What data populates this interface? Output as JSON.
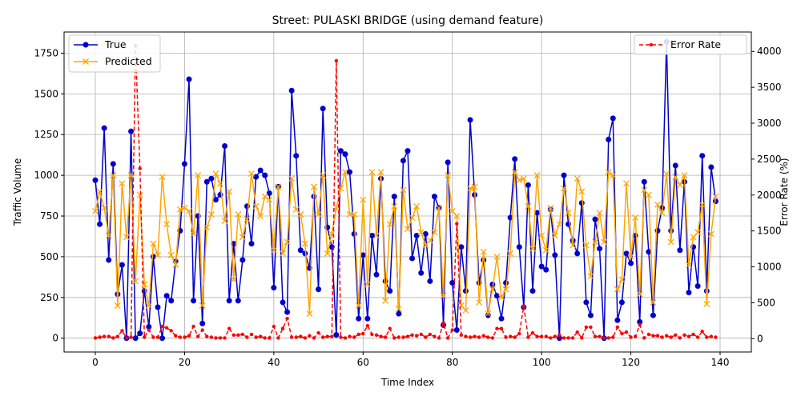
{
  "chart_data": {
    "type": "line",
    "title": "Street: PULASKI BRIDGE (using demand feature)",
    "xlabel": "Time Index",
    "ylabel": "Traffic Volume",
    "y2label": "Error Rate (%)",
    "xlim": [
      -7,
      147
    ],
    "ylim": [
      -85,
      1880
    ],
    "y2lim": [
      -186,
      4270
    ],
    "xticks": [
      0,
      20,
      40,
      60,
      80,
      100,
      120,
      140
    ],
    "yticks": [
      0,
      250,
      500,
      750,
      1000,
      1250,
      1500,
      1750
    ],
    "y2ticks": [
      0,
      500,
      1000,
      1500,
      2000,
      2500,
      3000,
      3500,
      4000
    ],
    "grid": true,
    "legend_left_placement": "upper-left",
    "legend_right_placement": "upper-right",
    "series": [
      {
        "name": "True",
        "axis": "left",
        "color": "#0000cc",
        "marker": "circle",
        "values": [
          970,
          700,
          1290,
          480,
          1070,
          270,
          450,
          0,
          1270,
          0,
          30,
          290,
          70,
          500,
          190,
          0,
          260,
          230,
          470,
          660,
          1070,
          1590,
          230,
          750,
          90,
          960,
          980,
          850,
          880,
          1180,
          230,
          580,
          230,
          480,
          810,
          580,
          990,
          1030,
          1000,
          890,
          310,
          930,
          220,
          160,
          1520,
          1120,
          540,
          520,
          430,
          870,
          300,
          1410,
          680,
          560,
          20,
          1150,
          1130,
          1020,
          640,
          120,
          510,
          120,
          630,
          390,
          980,
          350,
          290,
          870,
          150,
          1090,
          1150,
          490,
          630,
          400,
          640,
          350,
          870,
          800,
          80,
          1080,
          340,
          50,
          560,
          290,
          1340,
          880,
          340,
          480,
          140,
          330,
          260,
          120,
          340,
          740,
          1100,
          560,
          190,
          940,
          290,
          770,
          440,
          420,
          790,
          510,
          0,
          1000,
          700,
          600,
          520,
          830,
          220,
          140,
          730,
          550,
          0,
          1220,
          1350,
          110,
          220,
          520,
          460,
          630,
          100,
          960,
          530,
          140,
          660,
          800,
          1820,
          660,
          1060,
          540,
          960,
          280,
          560,
          320,
          1120,
          290,
          1050,
          840
        ]
      },
      {
        "name": "Predicted",
        "axis": "left",
        "color": "#ffa500",
        "marker": "x",
        "values": [
          780,
          900,
          800,
          630,
          1000,
          200,
          950,
          620,
          1000,
          350,
          880,
          330,
          200,
          580,
          510,
          990,
          700,
          510,
          450,
          790,
          800,
          780,
          640,
          1000,
          200,
          680,
          760,
          1010,
          950,
          720,
          900,
          360,
          760,
          620,
          730,
          1010,
          810,
          750,
          870,
          850,
          540,
          930,
          520,
          590,
          980,
          790,
          760,
          580,
          150,
          930,
          760,
          1000,
          520,
          640,
          800,
          920,
          1020,
          760,
          760,
          200,
          850,
          330,
          1020,
          630,
          1020,
          230,
          700,
          810,
          180,
          910,
          670,
          740,
          810,
          650,
          570,
          600,
          650,
          800,
          260,
          1000,
          780,
          750,
          200,
          170,
          920,
          930,
          220,
          530,
          150,
          300,
          500,
          250,
          300,
          520,
          1020,
          970,
          980,
          810,
          550,
          1000,
          630,
          540,
          800,
          630,
          700,
          920,
          770,
          570,
          980,
          900,
          570,
          380,
          590,
          770,
          590,
          1020,
          1000,
          300,
          360,
          950,
          500,
          740,
          270,
          910,
          880,
          220,
          820,
          770,
          1010,
          590,
          990,
          940,
          1000,
          450,
          620,
          650,
          820,
          210,
          640,
          870
        ]
      },
      {
        "name": "Error Rate",
        "axis": "right",
        "color": "#ff0000",
        "marker": "dot",
        "linestyle": "dashed",
        "values": [
          10,
          20,
          30,
          30,
          10,
          30,
          110,
          10,
          20,
          4080,
          2370,
          20,
          120,
          20,
          20,
          170,
          150,
          110,
          40,
          20,
          20,
          40,
          170,
          30,
          120,
          30,
          20,
          10,
          10,
          10,
          140,
          50,
          50,
          60,
          20,
          60,
          20,
          30,
          10,
          10,
          170,
          10,
          140,
          280,
          20,
          20,
          30,
          10,
          40,
          10,
          80,
          20,
          30,
          30,
          3870,
          20,
          10,
          30,
          20,
          60,
          70,
          180,
          60,
          50,
          30,
          20,
          140,
          10,
          20,
          20,
          30,
          50,
          40,
          60,
          20,
          60,
          30,
          10,
          220,
          10,
          120,
          1600,
          50,
          30,
          20,
          30,
          20,
          40,
          20,
          10,
          140,
          140,
          20,
          30,
          20,
          70,
          450,
          20,
          80,
          30,
          30,
          30,
          10,
          30,
          50,
          10,
          10,
          10,
          90,
          10,
          160,
          160,
          30,
          30,
          10,
          10,
          20,
          160,
          70,
          90,
          20,
          30,
          190,
          10,
          60,
          40,
          40,
          20,
          40,
          20,
          50,
          10,
          50,
          30,
          60,
          20,
          100,
          20,
          30,
          20
        ]
      }
    ]
  }
}
